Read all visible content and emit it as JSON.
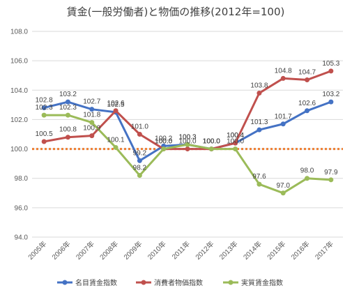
{
  "chart_data": {
    "type": "line",
    "title": "賃金(一般労働者)と物価の推移(2012年=100)",
    "categories": [
      "2005年",
      "2006年",
      "2007年",
      "2008年",
      "2009年",
      "2010年",
      "2011年",
      "2012年",
      "2013年",
      "2014年",
      "2015年",
      "2016年",
      "2017年"
    ],
    "ylim": [
      94.0,
      108.0
    ],
    "yticks": [
      "94.0",
      "96.0",
      "98.0",
      "100.0",
      "102.0",
      "104.0",
      "106.0",
      "108.0"
    ],
    "reference_line": 100.0,
    "grid": true,
    "legend_position": "bottom",
    "series": [
      {
        "name": "名目賃金指数",
        "color": "#4472C4",
        "values": [
          102.8,
          103.2,
          102.7,
          102.5,
          99.2,
          100.2,
          100.3,
          100.0,
          100.4,
          101.3,
          101.7,
          102.6,
          103.2
        ]
      },
      {
        "name": "消費者物価指数",
        "color": "#C0504D",
        "values": [
          100.5,
          100.8,
          100.9,
          102.6,
          101.0,
          100.0,
          100.0,
          100.0,
          100.4,
          103.8,
          104.8,
          104.7,
          105.3
        ]
      },
      {
        "name": "実質賃金指数",
        "color": "#9BBB59",
        "values": [
          102.3,
          102.3,
          101.8,
          100.1,
          98.2,
          100.0,
          100.3,
          100.0,
          100.0,
          97.6,
          97.0,
          98.0,
          97.9
        ]
      }
    ],
    "reference_color": "#ED7D31"
  }
}
